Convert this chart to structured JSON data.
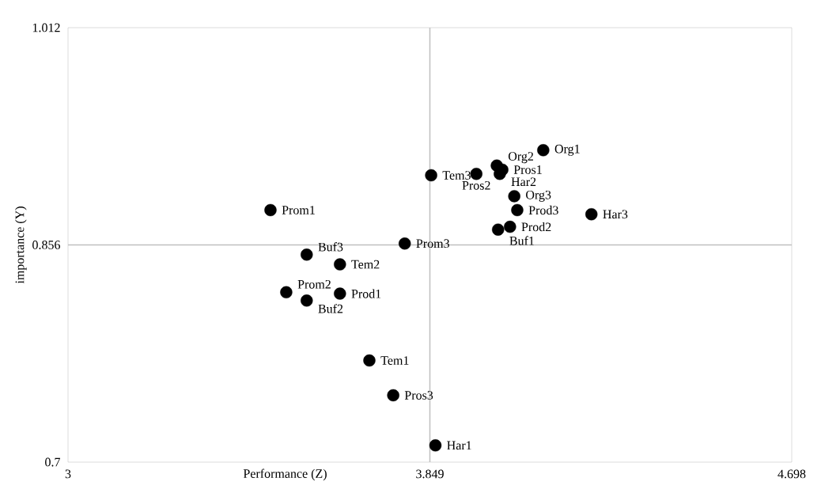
{
  "chart_data": {
    "type": "scatter",
    "xlabel": "Performance (Z)",
    "ylabel": "importance (Y)",
    "x": [
      4.115,
      4.006,
      4.019,
      4.013,
      3.958,
      3.852,
      4.047,
      4.054,
      4.228,
      4.037,
      4.009,
      3.475,
      3.79,
      3.56,
      3.638,
      3.512,
      3.638,
      3.56,
      3.707,
      3.763,
      3.862
    ],
    "series": [
      {
        "color": "#000000",
        "values": [
          0.924,
          0.913,
          0.91,
          0.907,
          0.907,
          0.906,
          0.891,
          0.881,
          0.878,
          0.869,
          0.867,
          0.881,
          0.857,
          0.849,
          0.842,
          0.822,
          0.821,
          0.816,
          0.773,
          0.748,
          0.712
        ]
      }
    ],
    "marker": "circle",
    "xlim": [
      3,
      4.698
    ],
    "ylim": [
      0.7,
      1.012
    ],
    "xticks": [
      3,
      3.849,
      4.698
    ],
    "yticks": [
      0.7,
      0.856,
      1.012
    ],
    "ref_lines": [
      {
        "axis": "x",
        "value": 3.849,
        "color": "#bfbfbf"
      },
      {
        "axis": "y",
        "value": 0.856,
        "color": "#bfbfbf"
      }
    ],
    "annotations": [
      {
        "text": "Org1",
        "x": 4.115,
        "y": 0.924
      },
      {
        "text": "Org2",
        "x": 4.006,
        "y": 0.913
      },
      {
        "text": "Pros1",
        "x": 4.019,
        "y": 0.91
      },
      {
        "text": "Har2",
        "x": 4.013,
        "y": 0.907
      },
      {
        "text": "Pros2",
        "x": 3.958,
        "y": 0.907
      },
      {
        "text": "Tem3",
        "x": 3.852,
        "y": 0.906
      },
      {
        "text": "Org3",
        "x": 4.047,
        "y": 0.891
      },
      {
        "text": "Prod3",
        "x": 4.054,
        "y": 0.881
      },
      {
        "text": "Har3",
        "x": 4.228,
        "y": 0.878
      },
      {
        "text": "Prod2",
        "x": 4.037,
        "y": 0.869
      },
      {
        "text": "Buf1",
        "x": 4.009,
        "y": 0.867
      },
      {
        "text": "Prom1",
        "x": 3.475,
        "y": 0.881
      },
      {
        "text": "Prom3",
        "x": 3.79,
        "y": 0.857
      },
      {
        "text": "Buf3",
        "x": 3.56,
        "y": 0.849
      },
      {
        "text": "Tem2",
        "x": 3.638,
        "y": 0.842
      },
      {
        "text": "Prom2",
        "x": 3.512,
        "y": 0.822
      },
      {
        "text": "Prod1",
        "x": 3.638,
        "y": 0.821
      },
      {
        "text": "Buf2",
        "x": 3.56,
        "y": 0.816
      },
      {
        "text": "Tem1",
        "x": 3.707,
        "y": 0.773
      },
      {
        "text": "Pros3",
        "x": 3.763,
        "y": 0.748
      },
      {
        "text": "Har1",
        "x": 3.862,
        "y": 0.712
      }
    ]
  }
}
